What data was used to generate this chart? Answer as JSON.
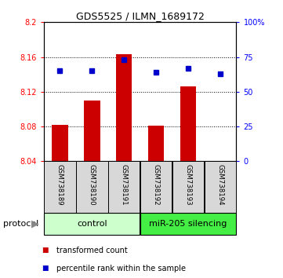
{
  "title": "GDS5525 / ILMN_1689172",
  "samples": [
    "GSM738189",
    "GSM738190",
    "GSM738191",
    "GSM738192",
    "GSM738193",
    "GSM738194"
  ],
  "transformed_counts": [
    8.082,
    8.11,
    8.163,
    8.081,
    8.126,
    8.04
  ],
  "percentile_ranks": [
    65,
    65,
    73,
    64,
    67,
    63
  ],
  "bar_bottom": 8.04,
  "ylim_left": [
    8.04,
    8.2
  ],
  "ylim_right": [
    0,
    100
  ],
  "yticks_left": [
    8.04,
    8.08,
    8.12,
    8.16,
    8.2
  ],
  "ytick_labels_left": [
    "8.04",
    "8.08",
    "8.12",
    "8.16",
    "8.2"
  ],
  "yticks_right": [
    0,
    25,
    50,
    75,
    100
  ],
  "ytick_labels_right": [
    "0",
    "25",
    "50",
    "75",
    "100%"
  ],
  "bar_color": "#CC0000",
  "dot_color": "#0000CC",
  "groups": [
    {
      "label": "control",
      "samples": [
        0,
        1,
        2
      ],
      "color": "#CCFFCC"
    },
    {
      "label": "miR-205 silencing",
      "samples": [
        3,
        4,
        5
      ],
      "color": "#44EE44"
    }
  ],
  "protocol_label": "protocol",
  "legend_items": [
    {
      "color": "#CC0000",
      "marker": "s",
      "label": "transformed count"
    },
    {
      "color": "#0000CC",
      "marker": "s",
      "label": "percentile rank within the sample"
    }
  ],
  "sample_box_color": "#D8D8D8",
  "plot_bg": "#FFFFFF"
}
